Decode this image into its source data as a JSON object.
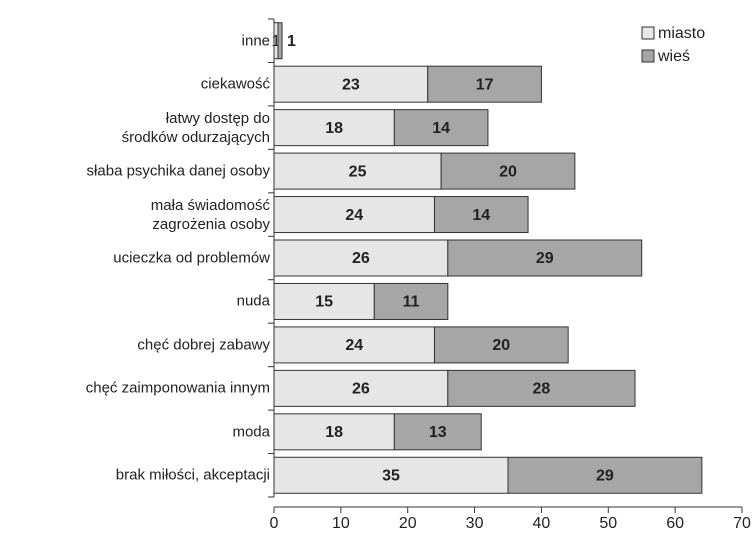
{
  "chart_data": {
    "type": "stacked_barh",
    "categories": [
      "inne",
      "ciekawość",
      "łatwy dostęp do\nśrodków odurzających",
      "słaba psychika danej osoby",
      "mała świadomość\nzagrożenia osoby",
      "ucieczka od problemów",
      "nuda",
      "chęć dobrej zabawy",
      "chęć zaimponowania innym",
      "moda",
      "brak miłości, akceptacji"
    ],
    "series": [
      {
        "name": "miasto",
        "color": "#e6e6e6",
        "values": [
          0.6,
          23,
          18,
          25,
          24,
          26,
          15,
          24,
          26,
          18,
          35
        ],
        "value_labels": [
          "1",
          "23",
          "18",
          "25",
          "24",
          "26",
          "15",
          "24",
          "26",
          "18",
          "35"
        ]
      },
      {
        "name": "wieś",
        "color": "#a6a6a6",
        "values": [
          0.6,
          17,
          14,
          20,
          14,
          29,
          11,
          20,
          28,
          13,
          29
        ],
        "value_labels": [
          "1",
          "17",
          "14",
          "20",
          "14",
          "29",
          "11",
          "20",
          "28",
          "13",
          "29"
        ]
      }
    ],
    "xlim": [
      0,
      70
    ],
    "xticks": [
      0,
      10,
      20,
      30,
      40,
      50,
      60,
      70
    ],
    "legend": "upper right"
  }
}
